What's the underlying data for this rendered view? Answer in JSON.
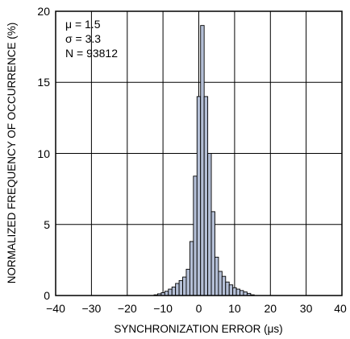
{
  "chart_data": {
    "type": "bar",
    "xlabel": "SYNCHRONIZATION ERROR (μs)",
    "ylabel": "NORMALIZED FREQUENCY OF OCCURRENCE (%)",
    "xlim": [
      -40,
      40
    ],
    "ylim": [
      0,
      20
    ],
    "x_ticks": [
      "−40",
      "−30",
      "−20",
      "−10",
      "0",
      "10",
      "20",
      "30",
      "40"
    ],
    "y_ticks": [
      "0",
      "5",
      "10",
      "15",
      "20"
    ],
    "grid": true,
    "bin_width": 1,
    "bar_color": "#b4bfd6",
    "annotations": [
      "μ = 1.5",
      "σ = 3.3",
      "N = 93812"
    ],
    "x": [
      -12,
      -11,
      -10,
      -9,
      -8,
      -7,
      -6,
      -5,
      -4,
      -3,
      -2,
      -1,
      0,
      1,
      2,
      3,
      4,
      5,
      6,
      7,
      8,
      9,
      10,
      11,
      12,
      13,
      14,
      15
    ],
    "values": [
      0.05,
      0.12,
      0.2,
      0.3,
      0.45,
      0.6,
      0.85,
      1.05,
      1.3,
      1.85,
      3.8,
      8.4,
      14.0,
      19.0,
      14.0,
      10.0,
      5.9,
      2.7,
      1.7,
      1.35,
      0.95,
      0.75,
      0.55,
      0.45,
      0.35,
      0.25,
      0.15,
      0.05
    ]
  }
}
